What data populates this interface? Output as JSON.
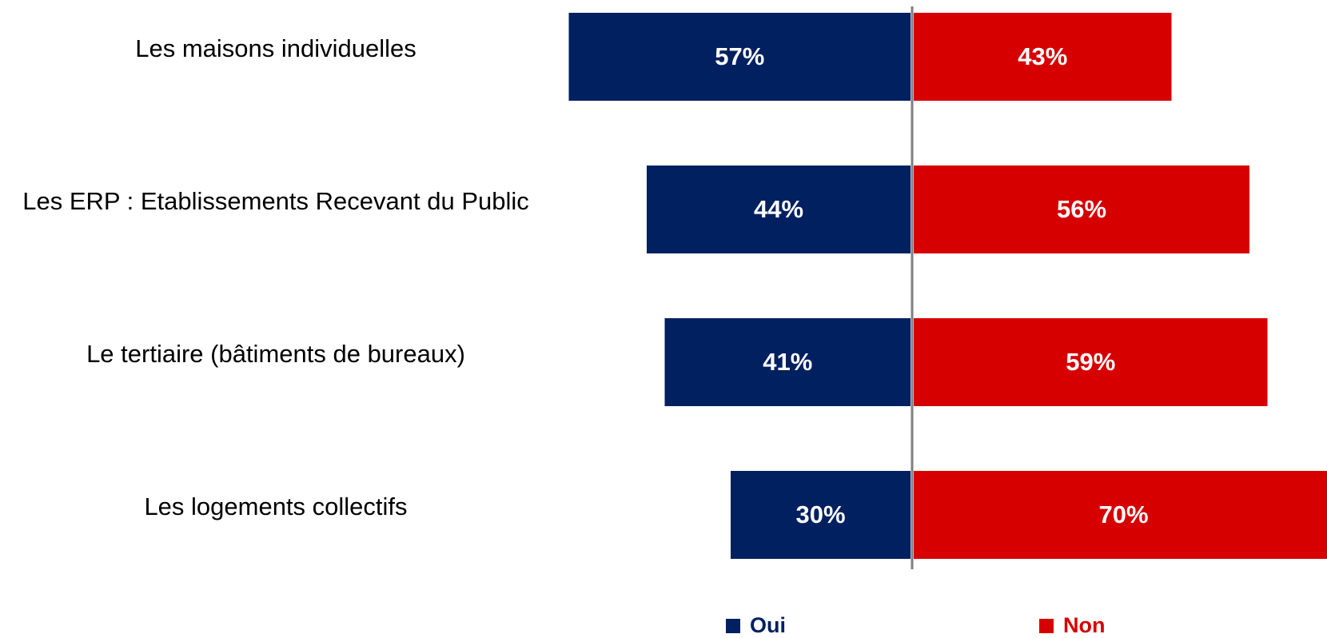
{
  "chart_data": {
    "type": "bar",
    "orientation": "horizontal-diverging",
    "categories": [
      "Les maisons individuelles",
      "Les ERP : Etablissements Recevant du Public",
      "Le tertiaire (bâtiments de bureaux)",
      "Les logements collectifs"
    ],
    "series": [
      {
        "name": "Oui",
        "values": [
          57,
          44,
          41,
          30
        ],
        "labels": [
          "57%",
          "44%",
          "41%",
          "30%"
        ],
        "color": "#002060"
      },
      {
        "name": "Non",
        "values": [
          43,
          56,
          59,
          70
        ],
        "labels": [
          "43%",
          "56%",
          "59%",
          "70%"
        ],
        "color": "#d60000"
      }
    ],
    "unit": "%",
    "legend_position": "bottom",
    "grid": false,
    "center_line_color": "#7f7f7f"
  }
}
